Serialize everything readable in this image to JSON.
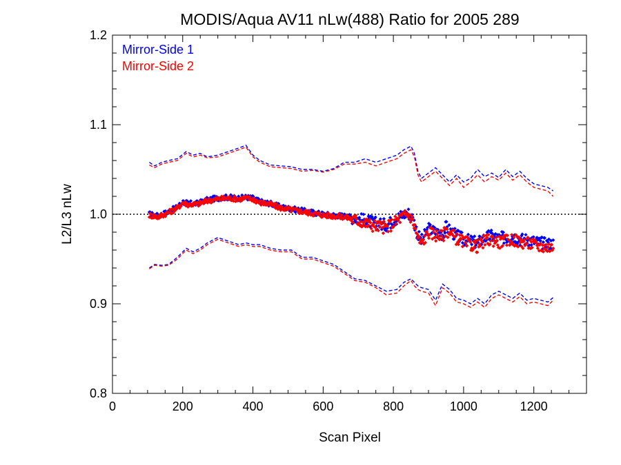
{
  "chart_data": {
    "type": "scatter",
    "title": "MODIS/Aqua AV11 nLw(488) Ratio for 2005 289",
    "xlabel": "Scan Pixel",
    "ylabel": "L2/L3 nLw",
    "xlim": [
      0,
      1350
    ],
    "ylim": [
      0.8,
      1.2
    ],
    "x_ticks": [
      0,
      200,
      400,
      600,
      800,
      1000,
      1200
    ],
    "x_tick_labels": [
      "0",
      "200",
      "400",
      "600",
      "800",
      "1000",
      "1200"
    ],
    "y_ticks": [
      0.8,
      0.9,
      1.0,
      1.1,
      1.2
    ],
    "y_tick_labels": [
      "0.8",
      "0.9",
      "1.0",
      "1.1",
      "1.2"
    ],
    "reference_line": 1.0,
    "grid": false,
    "legend_position": "top-left",
    "colors": {
      "mirror_side_1": "#0000ff",
      "mirror_side_2": "#ff0000",
      "reference": "#000000"
    },
    "series": [
      {
        "name": "Mirror-Side 1",
        "color": "#0000ff",
        "mean": {
          "x": [
            105,
            130,
            160,
            185,
            200,
            215,
            240,
            270,
            300,
            330,
            360,
            380,
            400,
            420,
            450,
            480,
            510,
            540,
            570,
            600,
            630,
            660,
            690,
            720,
            750,
            780,
            800,
            820,
            840,
            850,
            860,
            870,
            880,
            900,
            920,
            940,
            950,
            960,
            980,
            1000,
            1020,
            1040,
            1060,
            1080,
            1100,
            1120,
            1140,
            1160,
            1180,
            1200,
            1220,
            1240,
            1255
          ],
          "y": [
            1.0,
            0.998,
            1.003,
            1.008,
            1.014,
            1.012,
            1.012,
            1.016,
            1.018,
            1.019,
            1.018,
            1.019,
            1.018,
            1.014,
            1.012,
            1.008,
            1.006,
            1.004,
            1.002,
            1.0,
            0.999,
            0.998,
            0.996,
            0.993,
            0.99,
            0.988,
            0.993,
            0.998,
            1.002,
            0.999,
            0.99,
            0.976,
            0.97,
            0.984,
            0.98,
            0.978,
            0.986,
            0.982,
            0.976,
            0.972,
            0.97,
            0.968,
            0.974,
            0.976,
            0.973,
            0.974,
            0.976,
            0.972,
            0.972,
            0.97,
            0.968,
            0.967,
            0.967
          ]
        },
        "upper": {
          "x": [
            105,
            120,
            140,
            160,
            185,
            210,
            230,
            250,
            270,
            300,
            330,
            360,
            380,
            400,
            420,
            450,
            480,
            510,
            540,
            570,
            600,
            630,
            660,
            690,
            720,
            750,
            780,
            810,
            830,
            850,
            860,
            870,
            880,
            900,
            920,
            940,
            960,
            980,
            1000,
            1020,
            1040,
            1060,
            1080,
            1100,
            1120,
            1140,
            1160,
            1180,
            1200,
            1220,
            1240,
            1255
          ],
          "y": [
            1.058,
            1.054,
            1.058,
            1.06,
            1.062,
            1.07,
            1.066,
            1.068,
            1.064,
            1.066,
            1.07,
            1.074,
            1.077,
            1.066,
            1.06,
            1.055,
            1.054,
            1.053,
            1.05,
            1.05,
            1.048,
            1.051,
            1.058,
            1.058,
            1.062,
            1.058,
            1.062,
            1.066,
            1.072,
            1.076,
            1.068,
            1.048,
            1.04,
            1.046,
            1.052,
            1.044,
            1.036,
            1.044,
            1.036,
            1.04,
            1.05,
            1.042,
            1.046,
            1.041,
            1.05,
            1.042,
            1.048,
            1.04,
            1.034,
            1.032,
            1.03,
            1.026
          ]
        },
        "lower": {
          "x": [
            105,
            120,
            140,
            160,
            185,
            210,
            230,
            250,
            270,
            300,
            330,
            360,
            380,
            400,
            420,
            450,
            480,
            510,
            540,
            570,
            600,
            630,
            660,
            690,
            720,
            750,
            780,
            810,
            830,
            850,
            860,
            870,
            880,
            900,
            920,
            940,
            960,
            980,
            1000,
            1020,
            1040,
            1060,
            1080,
            1100,
            1120,
            1140,
            1160,
            1180,
            1200,
            1220,
            1240,
            1255
          ],
          "y": [
            0.94,
            0.944,
            0.943,
            0.944,
            0.952,
            0.962,
            0.958,
            0.962,
            0.968,
            0.974,
            0.97,
            0.966,
            0.968,
            0.966,
            0.966,
            0.962,
            0.96,
            0.96,
            0.952,
            0.952,
            0.948,
            0.944,
            0.936,
            0.928,
            0.926,
            0.92,
            0.914,
            0.916,
            0.924,
            0.928,
            0.924,
            0.92,
            0.918,
            0.916,
            0.904,
            0.922,
            0.916,
            0.906,
            0.904,
            0.9,
            0.906,
            0.9,
            0.91,
            0.914,
            0.91,
            0.906,
            0.912,
            0.904,
            0.906,
            0.904,
            0.902,
            0.907
          ]
        }
      },
      {
        "name": "Mirror-Side 2",
        "color": "#ff0000",
        "mean": {
          "x": [
            105,
            130,
            160,
            185,
            200,
            215,
            240,
            270,
            300,
            330,
            360,
            380,
            400,
            420,
            450,
            480,
            510,
            540,
            570,
            600,
            630,
            660,
            690,
            720,
            750,
            780,
            800,
            820,
            840,
            850,
            860,
            870,
            880,
            900,
            920,
            940,
            950,
            960,
            980,
            1000,
            1020,
            1040,
            1060,
            1080,
            1100,
            1120,
            1140,
            1160,
            1180,
            1200,
            1220,
            1240,
            1255
          ],
          "y": [
            0.999,
            0.997,
            1.002,
            1.007,
            1.013,
            1.011,
            1.011,
            1.015,
            1.017,
            1.018,
            1.017,
            1.018,
            1.017,
            1.013,
            1.011,
            1.007,
            1.005,
            1.003,
            1.001,
            0.999,
            0.998,
            0.997,
            0.994,
            0.99,
            0.987,
            0.985,
            0.99,
            0.996,
            1.0,
            0.997,
            0.987,
            0.973,
            0.967,
            0.98,
            0.977,
            0.975,
            0.983,
            0.979,
            0.973,
            0.969,
            0.966,
            0.964,
            0.97,
            0.972,
            0.969,
            0.97,
            0.972,
            0.969,
            0.968,
            0.966,
            0.964,
            0.963,
            0.963
          ]
        },
        "upper": {
          "x": [
            105,
            120,
            140,
            160,
            185,
            210,
            230,
            250,
            270,
            300,
            330,
            360,
            380,
            400,
            420,
            450,
            480,
            510,
            540,
            570,
            600,
            630,
            660,
            690,
            720,
            750,
            780,
            810,
            830,
            850,
            860,
            870,
            880,
            900,
            920,
            940,
            960,
            980,
            1000,
            1020,
            1040,
            1060,
            1080,
            1100,
            1120,
            1140,
            1160,
            1180,
            1200,
            1220,
            1240,
            1255
          ],
          "y": [
            1.055,
            1.052,
            1.056,
            1.058,
            1.06,
            1.068,
            1.064,
            1.066,
            1.063,
            1.064,
            1.068,
            1.072,
            1.075,
            1.064,
            1.058,
            1.053,
            1.052,
            1.051,
            1.048,
            1.049,
            1.047,
            1.05,
            1.056,
            1.056,
            1.058,
            1.054,
            1.058,
            1.062,
            1.068,
            1.072,
            1.064,
            1.044,
            1.036,
            1.042,
            1.048,
            1.04,
            1.032,
            1.04,
            1.03,
            1.036,
            1.044,
            1.036,
            1.042,
            1.038,
            1.046,
            1.038,
            1.044,
            1.036,
            1.03,
            1.028,
            1.026,
            1.02
          ]
        },
        "lower": {
          "x": [
            105,
            120,
            140,
            160,
            185,
            210,
            230,
            250,
            270,
            300,
            330,
            360,
            380,
            400,
            420,
            450,
            480,
            510,
            540,
            570,
            600,
            630,
            660,
            690,
            720,
            750,
            780,
            810,
            830,
            850,
            860,
            870,
            880,
            900,
            920,
            940,
            960,
            980,
            1000,
            1020,
            1040,
            1060,
            1080,
            1100,
            1120,
            1140,
            1160,
            1180,
            1200,
            1220,
            1240,
            1255
          ],
          "y": [
            0.939,
            0.943,
            0.942,
            0.943,
            0.95,
            0.96,
            0.956,
            0.96,
            0.966,
            0.972,
            0.968,
            0.964,
            0.966,
            0.964,
            0.964,
            0.96,
            0.958,
            0.958,
            0.95,
            0.95,
            0.946,
            0.942,
            0.934,
            0.926,
            0.924,
            0.918,
            0.91,
            0.912,
            0.92,
            0.926,
            0.92,
            0.916,
            0.914,
            0.912,
            0.898,
            0.918,
            0.912,
            0.902,
            0.9,
            0.896,
            0.902,
            0.896,
            0.906,
            0.91,
            0.906,
            0.902,
            0.908,
            0.9,
            0.902,
            0.9,
            0.898,
            0.904
          ]
        }
      }
    ]
  }
}
